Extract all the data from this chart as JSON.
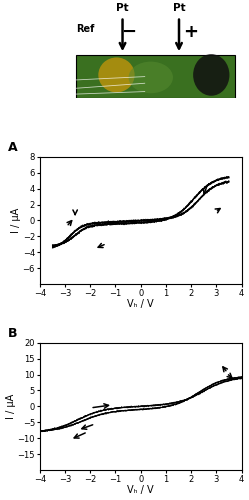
{
  "panel_A": {
    "label": "A",
    "xlabel": "Vₕ / V",
    "ylabel": "I / μA",
    "xlim": [
      -4,
      4
    ],
    "ylim": [
      -8,
      8
    ],
    "xticks": [
      -4,
      -3,
      -2,
      -1,
      0,
      1,
      2,
      3,
      4
    ],
    "yticks": [
      -6,
      -4,
      -2,
      0,
      2,
      4,
      6,
      8
    ]
  },
  "panel_B": {
    "label": "B",
    "xlabel": "Vₕ / V",
    "ylabel": "I / μA",
    "xlim": [
      -4,
      4
    ],
    "ylim": [
      -20,
      20
    ],
    "xticks": [
      -4,
      -3,
      -2,
      -1,
      0,
      1,
      2,
      3,
      4
    ],
    "yticks": [
      -15,
      -10,
      -5,
      0,
      5,
      10,
      15,
      20
    ]
  },
  "background_color": "#ffffff",
  "line_color": "#000000"
}
